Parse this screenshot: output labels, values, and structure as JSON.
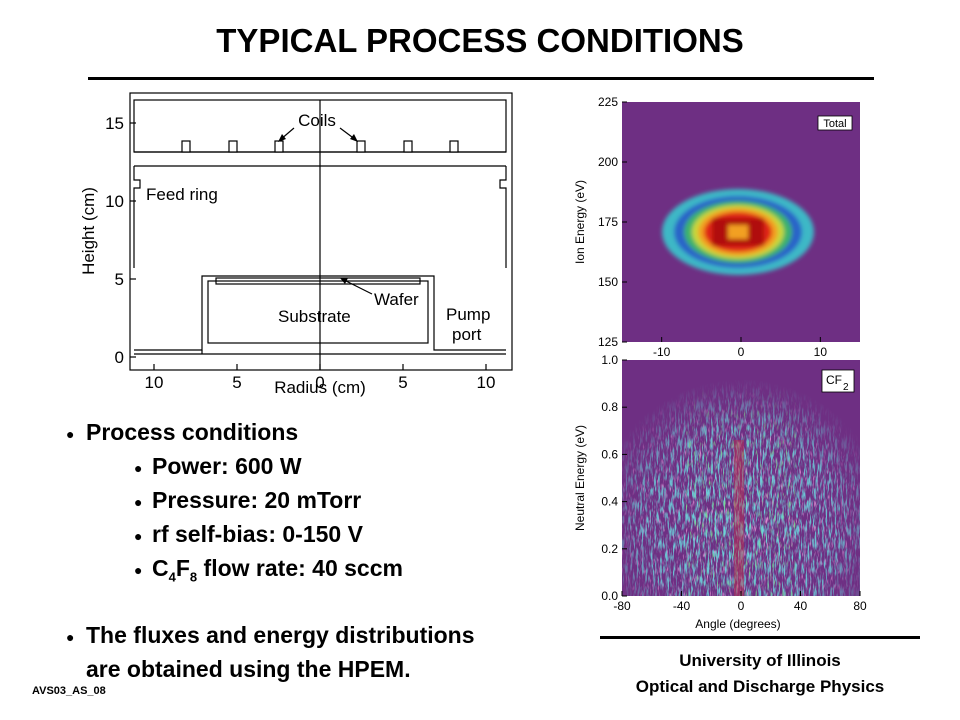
{
  "title": "TYPICAL PROCESS CONDITIONS",
  "reactor": {
    "y_axis_label": "Height (cm)",
    "x_axis_label": "Radius (cm)",
    "y_ticks": [
      "15",
      "10",
      "5",
      "0"
    ],
    "x_ticks": [
      "10",
      "5",
      "0",
      "5",
      "10"
    ],
    "labels": {
      "coils": "Coils",
      "feed_ring": "Feed ring",
      "wafer": "Wafer",
      "substrate": "Substrate",
      "pump_line1": "Pump",
      "pump_line2": "port"
    }
  },
  "chart_data": [
    {
      "type": "heatmap",
      "legend_label": "Total",
      "xlabel": "",
      "ylabel": "Ion  Energy (eV)",
      "x_ticks": [
        -10,
        0,
        10
      ],
      "y_ticks": [
        125,
        150,
        175,
        200,
        225
      ],
      "xlim": [
        -15,
        15
      ],
      "ylim": [
        125,
        225
      ],
      "peak": {
        "x": 0,
        "y": 170
      },
      "colors": {
        "background": "#6e2f83"
      }
    },
    {
      "type": "heatmap",
      "legend_label_main": "CF",
      "legend_label_sub": "2",
      "xlabel": "Angle (degrees)",
      "ylabel": "Neutral  Energy (eV)",
      "x_ticks": [
        -80,
        -40,
        0,
        40,
        80
      ],
      "y_ticks": [
        0.0,
        0.2,
        0.4,
        0.6,
        0.8,
        1.0
      ],
      "y_tick_labels": [
        "0.0",
        "0.2",
        "0.4",
        "0.6",
        "0.8",
        "1.0"
      ],
      "xlim": [
        -80,
        80
      ],
      "ylim": [
        0,
        1.0
      ],
      "colors": {
        "background": "#6e2f83"
      }
    }
  ],
  "bullets": {
    "main1": "Process conditions",
    "sub": [
      "Power: 600 W",
      "Pressure: 20 mTorr",
      "rf self-bias: 0-150 V"
    ],
    "chem_c": "C",
    "chem_4": "4",
    "chem_f": "F",
    "chem_8": "8",
    "chem_rest": " flow rate: 40 sccm",
    "main2_line1": "The fluxes and energy distributions",
    "main2_line2": "are obtained using the HPEM."
  },
  "footer": {
    "line1": "University of Illinois",
    "line2": "Optical and Discharge Physics"
  },
  "slide_code": "AVS03_AS_08"
}
